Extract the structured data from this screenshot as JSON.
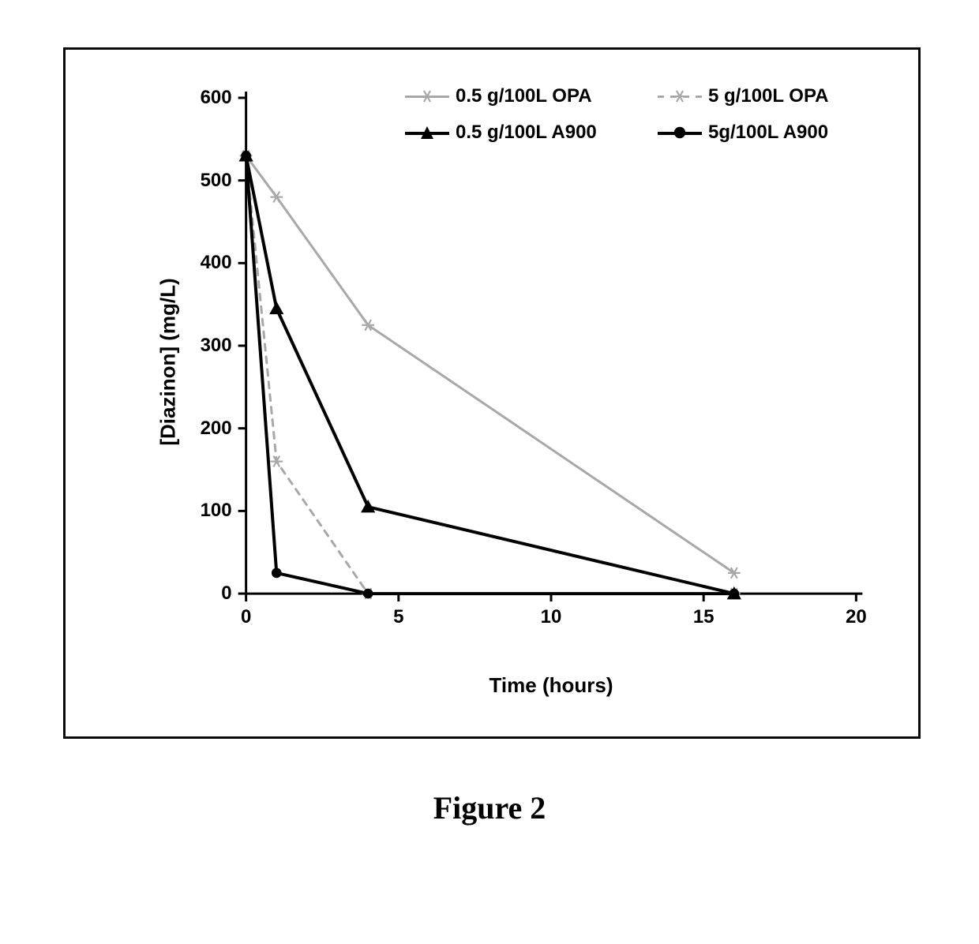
{
  "caption": "Figure 2",
  "chart": {
    "type": "line",
    "background_color": "#ffffff",
    "frame_color": "#0a0a0a",
    "axis_color": "#000000",
    "axis_line_width": 3,
    "tick_length": 10,
    "tick_width": 3,
    "x": {
      "label": "Time (hours)",
      "min": -1,
      "max": 21,
      "ticks": [
        0,
        5,
        10,
        15,
        20
      ],
      "label_fontsize": 26,
      "tick_fontsize": 24
    },
    "y": {
      "label": "[Diazinon] (mg/L)",
      "min": -20,
      "max": 620,
      "ticks": [
        0,
        100,
        200,
        300,
        400,
        500,
        600
      ],
      "label_fontsize": 26,
      "tick_fontsize": 24
    },
    "legend": {
      "position": "top-inside",
      "fontsize": 24,
      "items": [
        {
          "key": "opa_05",
          "label": "0.5 g/100L OPA"
        },
        {
          "key": "opa_5",
          "label": "5 g/100L OPA"
        },
        {
          "key": "a900_05",
          "label": "0.5 g/100L A900"
        },
        {
          "key": "a900_5",
          "label": "5g/100L A900"
        }
      ]
    },
    "series": {
      "opa_05": {
        "label": "0.5 g/100L OPA",
        "color": "#a8a8a8",
        "line_width": 3,
        "marker": "star",
        "marker_size": 12,
        "dash": null,
        "x": [
          0,
          1,
          4,
          16
        ],
        "y": [
          530,
          480,
          325,
          25
        ]
      },
      "opa_5": {
        "label": "5 g/100L OPA",
        "color": "#a8a8a8",
        "line_width": 3,
        "marker": "star",
        "marker_size": 12,
        "dash": "8,8",
        "x": [
          0,
          1,
          4,
          16
        ],
        "y": [
          530,
          160,
          0,
          0
        ]
      },
      "a900_05": {
        "label": "0.5 g/100L A900",
        "color": "#000000",
        "line_width": 4,
        "marker": "triangle",
        "marker_size": 14,
        "dash": null,
        "x": [
          0,
          1,
          4,
          16
        ],
        "y": [
          530,
          345,
          105,
          0
        ]
      },
      "a900_5": {
        "label": "5g/100L A900",
        "color": "#000000",
        "line_width": 4,
        "marker": "circle",
        "marker_size": 13,
        "dash": null,
        "x": [
          0,
          1,
          4,
          16
        ],
        "y": [
          530,
          25,
          0,
          0
        ]
      }
    }
  }
}
